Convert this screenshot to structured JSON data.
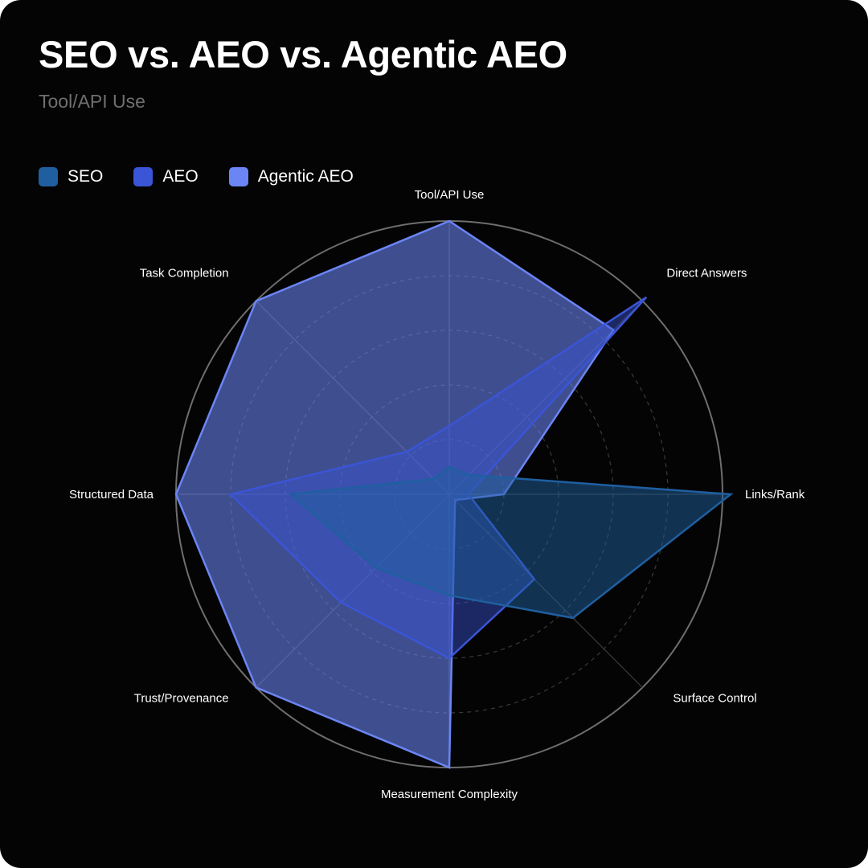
{
  "title": "SEO vs. AEO vs. Agentic AEO",
  "subtitle": "Tool/API Use",
  "colors": {
    "background": "#040404",
    "seo": "#1f5fa0",
    "aeo": "#3a55d6",
    "agentic_aeo": "#6b85f5",
    "ring": "#6e6e6e"
  },
  "chart_data": {
    "type": "radar",
    "axes": [
      "Tool/API Use",
      "Direct Answers",
      "Links/Rank",
      "Surface Control",
      "Measurement Complexity",
      "Trust/Provenance",
      "Structured Data",
      "Task Completion"
    ],
    "range": [
      0,
      100
    ],
    "grid_levels": [
      20,
      40,
      60,
      80,
      100
    ],
    "legend": "top-left",
    "series": [
      {
        "name": "SEO",
        "color": "#1f5fa0",
        "values": [
          10,
          10,
          103,
          64,
          37,
          38,
          58,
          8
        ]
      },
      {
        "name": "AEO",
        "color": "#3a55d6",
        "values": [
          25,
          102,
          7,
          44,
          60,
          56,
          80,
          22
        ]
      },
      {
        "name": "Agentic AEO",
        "color": "#6b85f5",
        "values": [
          100,
          85,
          20,
          3,
          100,
          100,
          100,
          100
        ]
      }
    ]
  }
}
